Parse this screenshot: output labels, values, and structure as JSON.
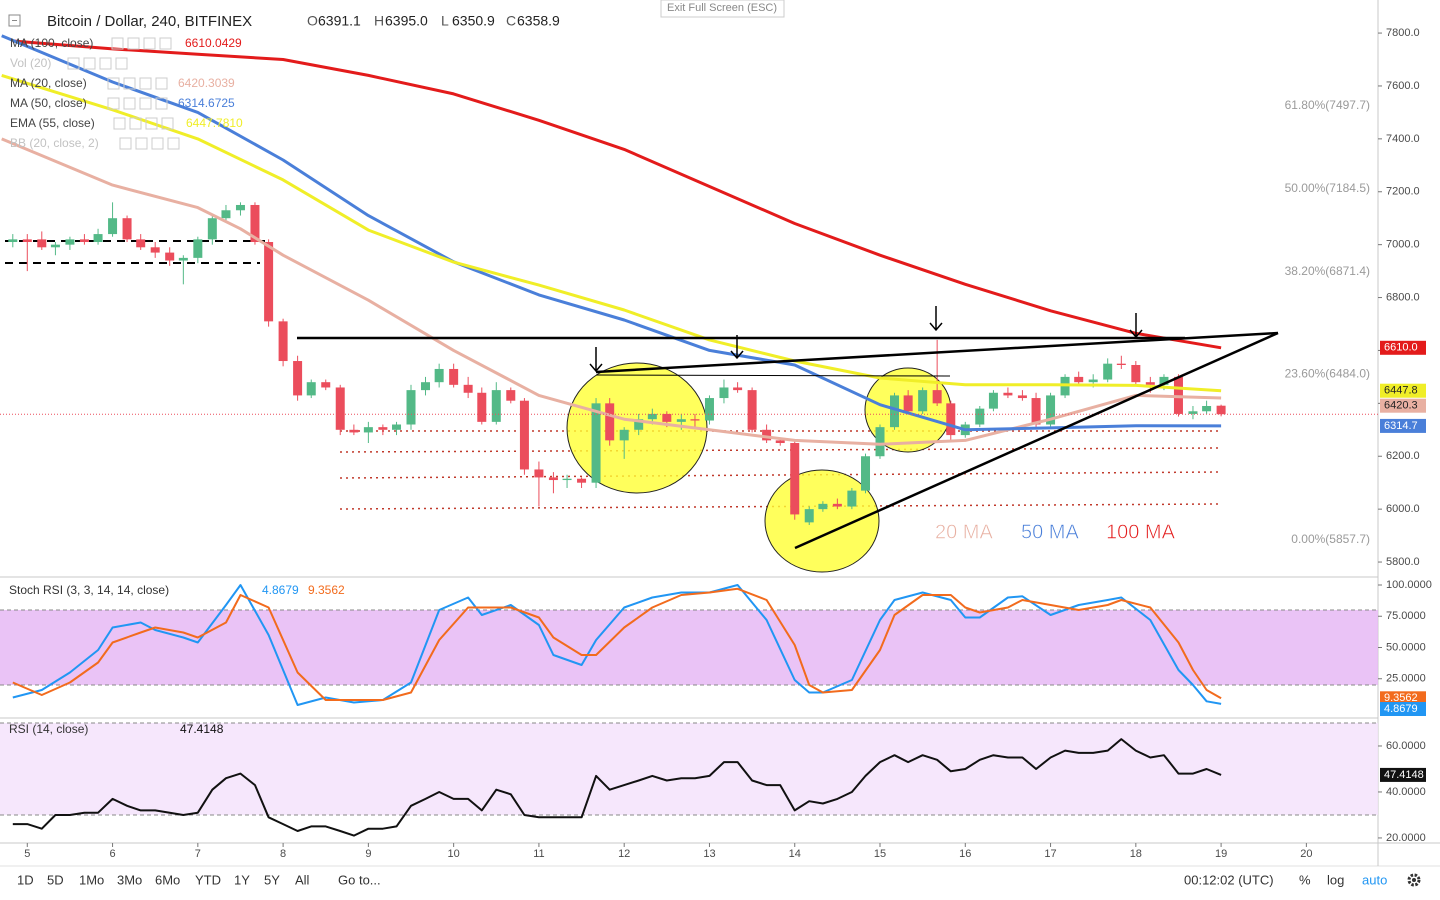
{
  "ui": {
    "exit_fullscreen": "Exit Full Screen (ESC)",
    "timeframes": [
      "1D",
      "5D",
      "1Mo",
      "3Mo",
      "6Mo",
      "YTD",
      "1Y",
      "5Y",
      "All"
    ],
    "goto": "Go to...",
    "clock": "00:12:02 (UTC)",
    "percent": "%",
    "log": "log",
    "auto": "auto"
  },
  "chart_data": [
    {
      "type": "candlestick",
      "title": "Bitcoin / Dollar, 240, BITFINEX",
      "ohlc_legend": {
        "labels": [
          "O",
          "H",
          "L",
          "C"
        ],
        "value_labels": [
          "6391.1",
          "6395.0",
          "6350.9",
          "6358.9"
        ]
      },
      "up_color": "#53b987",
      "down_color": "#eb4d5c",
      "x": [
        4.83,
        5,
        5.17,
        5.33,
        5.5,
        5.67,
        5.83,
        6,
        6.17,
        6.33,
        6.5,
        6.67,
        6.83,
        7,
        7.17,
        7.33,
        7.5,
        7.67,
        7.83,
        8,
        8.17,
        8.33,
        8.5,
        8.67,
        8.83,
        9,
        9.17,
        9.33,
        9.5,
        9.67,
        9.83,
        10,
        10.17,
        10.33,
        10.5,
        10.67,
        10.83,
        11,
        11.17,
        11.33,
        11.5,
        11.67,
        11.83,
        12,
        12.17,
        12.33,
        12.5,
        12.67,
        12.83,
        13,
        13.17,
        13.33,
        13.5,
        13.67,
        13.83,
        14,
        14.17,
        14.33,
        14.5,
        14.67,
        14.83,
        15,
        15.17,
        15.33,
        15.5,
        15.67,
        15.83,
        16,
        16.17,
        16.33,
        16.5,
        16.67,
        16.83,
        17,
        17.17,
        17.33,
        17.5,
        17.67,
        17.83,
        18,
        18.17,
        18.33,
        18.5,
        18.67,
        18.83,
        19
      ],
      "open": [
        7010,
        7020,
        7020,
        6990,
        7000,
        7020,
        7010,
        7040,
        7100,
        7020,
        6990,
        6970,
        6940,
        6950,
        7020,
        7100,
        7130,
        7150,
        7010,
        6710,
        6560,
        6430,
        6480,
        6460,
        6300,
        6290,
        6310,
        6300,
        6320,
        6450,
        6480,
        6530,
        6470,
        6440,
        6330,
        6450,
        6410,
        6150,
        6120,
        6110,
        6115,
        6100,
        6400,
        6260,
        6300,
        6340,
        6360,
        6330,
        6340,
        6335,
        6420,
        6460,
        6450,
        6300,
        6260,
        6250,
        5950,
        6000,
        6020,
        6010,
        6070,
        6200,
        6310,
        6430,
        6370,
        6450,
        6400,
        6280,
        6320,
        6380,
        6440,
        6430,
        6420,
        6320,
        6430,
        6500,
        6480,
        6490,
        6550,
        6545,
        6480,
        6470,
        6500,
        6360,
        6370,
        6391.1
      ],
      "high": [
        7040,
        7040,
        7050,
        7010,
        7030,
        7040,
        7060,
        7160,
        7110,
        7040,
        7010,
        6990,
        6960,
        7030,
        7110,
        7150,
        7160,
        7160,
        7020,
        6720,
        6580,
        6490,
        6490,
        6470,
        6320,
        6330,
        6320,
        6330,
        6470,
        6500,
        6550,
        6550,
        6500,
        6460,
        6480,
        6460,
        6420,
        6180,
        6140,
        6130,
        6120,
        6420,
        6420,
        6310,
        6360,
        6380,
        6370,
        6360,
        6360,
        6430,
        6490,
        6480,
        6460,
        6320,
        6270,
        6260,
        6010,
        6030,
        6040,
        6080,
        6210,
        6320,
        6440,
        6450,
        6460,
        6640,
        6410,
        6330,
        6390,
        6450,
        6460,
        6450,
        6440,
        6440,
        6510,
        6520,
        6510,
        6570,
        6580,
        6560,
        6500,
        6510,
        6510,
        6390,
        6410,
        6395
      ],
      "low": [
        6990,
        6900,
        6980,
        6960,
        6980,
        7000,
        7000,
        7030,
        7010,
        6980,
        6950,
        6920,
        6850,
        6930,
        7000,
        7090,
        7110,
        7000,
        6690,
        6540,
        6410,
        6420,
        6450,
        6280,
        6280,
        6250,
        6280,
        6280,
        6300,
        6430,
        6460,
        6460,
        6420,
        6320,
        6320,
        6400,
        6130,
        6010,
        6060,
        6080,
        6080,
        6080,
        6240,
        6190,
        6280,
        6320,
        6310,
        6300,
        6310,
        6320,
        6400,
        6440,
        6290,
        6250,
        6240,
        5960,
        5940,
        5990,
        6000,
        6000,
        6060,
        6190,
        6300,
        6360,
        6360,
        6390,
        6260,
        6270,
        6310,
        6370,
        6420,
        6410,
        6310,
        6310,
        6420,
        6470,
        6460,
        6480,
        6530,
        6470,
        6440,
        6450,
        6350,
        6340,
        6360,
        6350.9
      ],
      "close": [
        7020,
        7010,
        6990,
        7000,
        7020,
        7010,
        7040,
        7100,
        7020,
        6990,
        6970,
        6940,
        6950,
        7020,
        7100,
        7130,
        7150,
        7010,
        6710,
        6560,
        6430,
        6480,
        6460,
        6300,
        6290,
        6310,
        6300,
        6320,
        6450,
        6480,
        6530,
        6470,
        6440,
        6330,
        6450,
        6410,
        6150,
        6120,
        6110,
        6115,
        6100,
        6400,
        6260,
        6300,
        6340,
        6360,
        6330,
        6340,
        6335,
        6420,
        6460,
        6450,
        6300,
        6260,
        6250,
        5980,
        6000,
        6020,
        6010,
        6070,
        6200,
        6310,
        6430,
        6370,
        6450,
        6400,
        6280,
        6320,
        6380,
        6440,
        6430,
        6420,
        6320,
        6430,
        6500,
        6480,
        6490,
        6550,
        6545,
        6480,
        6470,
        6500,
        6360,
        6370,
        6390,
        6358.9
      ],
      "series": [
        {
          "name": "MA (100, close)",
          "color": "#e31b1b",
          "x": [
            4.83,
            6,
            7,
            8,
            9,
            10,
            11,
            12,
            13,
            14,
            15,
            16,
            17,
            18,
            19
          ],
          "values": [
            7770,
            7740,
            7720,
            7700,
            7640,
            7570,
            7470,
            7360,
            7220,
            7080,
            6960,
            6850,
            6750,
            6665,
            6610.0429
          ],
          "legend_value": "6610.0429",
          "tag_label": "6610.0"
        },
        {
          "name": "MA (20, close)",
          "color": "#e8b0a2",
          "x": [
            4.7,
            6,
            7,
            7.5,
            8,
            9,
            10,
            11,
            12,
            13,
            14,
            15,
            16,
            17,
            18,
            19
          ],
          "values": [
            7400,
            7225,
            7140,
            7060,
            6960,
            6790,
            6600,
            6430,
            6340,
            6300,
            6260,
            6245,
            6260,
            6340,
            6430,
            6420.3039
          ],
          "legend_value": "6420.3039",
          "tag_label": "6420.3"
        },
        {
          "name": "MA (50, close)",
          "color": "#4a7fd9",
          "x": [
            4.7,
            6,
            7,
            8,
            9,
            10,
            11,
            12,
            13,
            14,
            15,
            16,
            17,
            18,
            19
          ],
          "values": [
            7790,
            7615,
            7500,
            7320,
            7110,
            6935,
            6810,
            6715,
            6600,
            6545,
            6395,
            6300,
            6307,
            6315,
            6314.6725
          ],
          "legend_value": "6314.6725",
          "tag_label": "6314.7"
        },
        {
          "name": "EMA (55, close)",
          "color": "#f0ee28",
          "x": [
            4.7,
            6,
            7,
            8,
            9,
            10,
            11,
            12,
            13,
            14,
            15,
            16,
            17,
            18,
            19
          ],
          "values": [
            7640,
            7510,
            7400,
            7245,
            7055,
            6934,
            6847,
            6753,
            6640,
            6560,
            6496,
            6470,
            6470,
            6468,
            6447.781
          ],
          "legend_value": "6447.7810",
          "tag_label": "6447.8"
        }
      ],
      "hidden_indicators": [
        "Vol (20)",
        "BB (20, close, 2)"
      ],
      "ylim": [
        5751,
        7925
      ],
      "yticks": [
        {
          "value": 5800,
          "label": "5800.0"
        },
        {
          "value": 6000,
          "label": "6000.0"
        },
        {
          "value": 6200,
          "label": "6200.0"
        },
        {
          "value": 6400,
          "label": "6400.0"
        },
        {
          "value": 6600,
          "label": "6600.0"
        },
        {
          "value": 6800,
          "label": "6800.0"
        },
        {
          "value": 7000,
          "label": "7000.0"
        },
        {
          "value": 7200,
          "label": "7200.0"
        },
        {
          "value": 7400,
          "label": "7400.0"
        },
        {
          "value": 7600,
          "label": "7600.0"
        },
        {
          "value": 7800,
          "label": "7800.0"
        }
      ],
      "fib_levels": [
        {
          "label": "61.80%(7497.7)",
          "value": 7497.7
        },
        {
          "label": "50.00%(7184.5)",
          "value": 7184.5
        },
        {
          "label": "38.20%(6871.4)",
          "value": 6871.4
        },
        {
          "label": "23.60%(6484.0)",
          "value": 6484
        },
        {
          "label": "0.00%(5857.7)",
          "value": 5857.7
        }
      ],
      "ma_labels": [
        {
          "text": "20 MA",
          "color": "#e8b0a2"
        },
        {
          "text": "50 MA",
          "color": "#4a7fd9"
        },
        {
          "text": "100 MA",
          "color": "#e31b1b"
        }
      ],
      "last_price_line": true
    },
    {
      "type": "line",
      "title": "Stoch RSI (3, 3, 14, 14, close)",
      "x": [
        4.83,
        5.17,
        5.5,
        5.83,
        6,
        6.33,
        6.5,
        6.83,
        7,
        7.33,
        7.5,
        7.83,
        8.17,
        8.5,
        8.83,
        9.17,
        9.5,
        9.83,
        10.17,
        10.33,
        10.67,
        11,
        11.17,
        11.5,
        11.67,
        12,
        12.33,
        12.67,
        13,
        13.33,
        13.67,
        14,
        14.17,
        14.33,
        14.67,
        15,
        15.17,
        15.5,
        15.83,
        16,
        16.17,
        16.5,
        16.67,
        17,
        17.33,
        17.67,
        17.83,
        18.17,
        18.5,
        18.67,
        18.83,
        19
      ],
      "series": [
        {
          "color": "#2196f3",
          "values": [
            10,
            16,
            30,
            48,
            66,
            70,
            64,
            58,
            54,
            84,
            100,
            60,
            4,
            10,
            6,
            8,
            22,
            80,
            90,
            76,
            84,
            68,
            44,
            36,
            56,
            82,
            90,
            94,
            94,
            100,
            72,
            24,
            14,
            14,
            24,
            72,
            88,
            94,
            88,
            74,
            74,
            90,
            91,
            76,
            84,
            88,
            90,
            72,
            32,
            20,
            7,
            4.8679
          ]
        },
        {
          "color": "#f26b1d",
          "values": [
            22,
            12,
            22,
            38,
            54,
            62,
            66,
            62,
            58,
            70,
            92,
            82,
            30,
            8,
            8,
            8,
            14,
            56,
            82,
            82,
            82,
            74,
            58,
            44,
            44,
            66,
            82,
            92,
            94,
            97,
            88,
            52,
            20,
            14,
            16,
            48,
            76,
            92,
            92,
            82,
            78,
            82,
            88,
            84,
            80,
            84,
            88,
            82,
            54,
            32,
            16,
            9.3562
          ]
        }
      ],
      "bands": [
        20,
        80
      ],
      "band_color": "#e6b8f5",
      "ylim": [
        -4.8,
        105.6
      ],
      "yticks": [
        {
          "value": 25,
          "label": "25.0000"
        },
        {
          "value": 50,
          "label": "50.0000"
        },
        {
          "value": 75,
          "label": "75.0000"
        },
        {
          "value": 100,
          "label": "100.0000"
        }
      ]
    },
    {
      "type": "line",
      "title": "RSI (14, close)",
      "x": [
        4.83,
        5,
        5.17,
        5.33,
        5.5,
        5.67,
        5.83,
        6,
        6.17,
        6.33,
        6.5,
        6.67,
        6.83,
        7,
        7.17,
        7.33,
        7.5,
        7.67,
        7.83,
        8,
        8.17,
        8.33,
        8.5,
        8.67,
        8.83,
        9,
        9.17,
        9.33,
        9.5,
        9.67,
        9.83,
        10,
        10.17,
        10.33,
        10.5,
        10.67,
        10.83,
        11,
        11.17,
        11.33,
        11.5,
        11.67,
        11.83,
        12,
        12.17,
        12.33,
        12.5,
        12.67,
        12.83,
        13,
        13.17,
        13.33,
        13.5,
        13.67,
        13.83,
        14,
        14.17,
        14.33,
        14.5,
        14.67,
        14.83,
        15,
        15.17,
        15.33,
        15.5,
        15.67,
        15.83,
        16,
        16.17,
        16.33,
        16.5,
        16.67,
        16.83,
        17,
        17.17,
        17.33,
        17.5,
        17.67,
        17.83,
        18,
        18.17,
        18.33,
        18.5,
        18.67,
        18.83,
        19
      ],
      "series": [
        {
          "color": "#111111",
          "values": [
            26,
            26,
            24,
            30,
            30,
            31,
            31,
            37,
            34,
            32,
            32,
            31,
            30,
            31,
            41,
            46,
            48,
            43,
            29,
            26,
            23,
            25,
            25,
            23,
            21,
            24,
            24,
            25,
            34,
            37,
            40,
            37,
            37,
            32,
            41,
            39,
            30,
            29,
            29,
            29,
            29,
            47,
            41,
            43,
            45,
            47,
            45,
            46,
            46,
            47,
            53,
            53,
            45,
            43,
            43,
            32,
            36,
            35,
            37,
            40,
            47,
            53,
            56,
            53,
            56,
            54,
            49,
            50,
            54,
            56,
            55,
            55,
            50,
            55,
            58,
            57,
            57,
            58,
            63,
            58,
            55,
            56,
            48,
            48,
            50,
            47.4148
          ]
        }
      ],
      "bands": [
        30,
        70
      ],
      "band_color": "#f4e3fb",
      "ylim": [
        17.8,
        71.3
      ],
      "yticks": [
        {
          "value": 20,
          "label": "20.0000"
        },
        {
          "value": 40,
          "label": "40.0000"
        },
        {
          "value": 60,
          "label": "60.0000"
        }
      ],
      "xlim": [
        4.68,
        20.84
      ],
      "xticks": [
        5,
        6,
        7,
        8,
        9,
        10,
        11,
        12,
        13,
        14,
        15,
        16,
        17,
        18,
        19,
        20
      ]
    }
  ]
}
